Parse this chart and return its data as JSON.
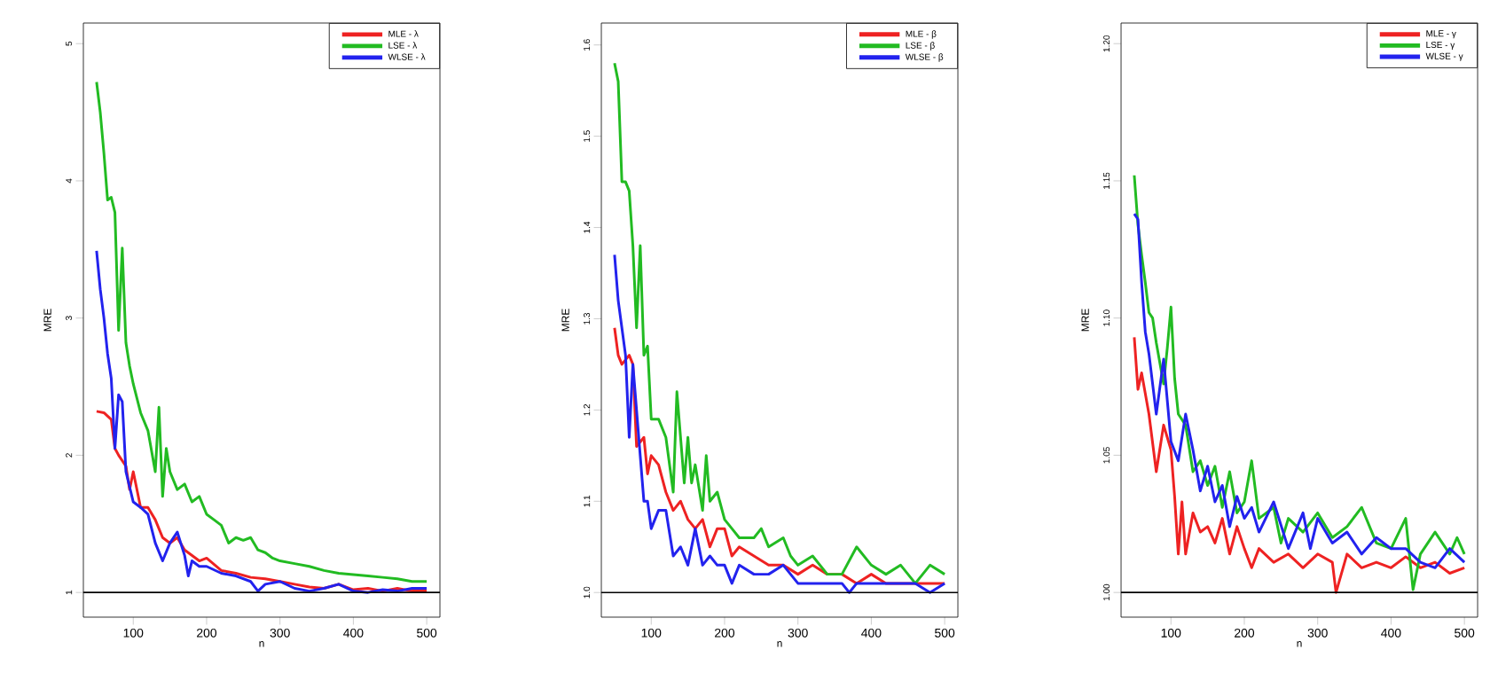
{
  "chart_data": [
    {
      "type": "line",
      "xlabel": "n",
      "ylabel": "MRE",
      "xlim": [
        32,
        518
      ],
      "ylim": [
        0.82,
        5.15
      ],
      "xticks": [
        100,
        200,
        300,
        400,
        500
      ],
      "yticks": [
        1,
        2,
        3,
        4,
        5
      ],
      "legend": "top right",
      "ref_lines": [
        {
          "axis": "y",
          "value": 1,
          "color": "#000000"
        }
      ],
      "series": [
        {
          "name": "MLE - λ",
          "color": "#ee2222",
          "x": [
            50,
            60,
            70,
            75,
            80,
            90,
            95,
            100,
            110,
            120,
            130,
            140,
            150,
            160,
            170,
            180,
            190,
            200,
            220,
            240,
            260,
            280,
            300,
            320,
            340,
            360,
            380,
            400,
            420,
            440,
            460,
            480,
            500
          ],
          "values": [
            2.32,
            2.31,
            2.26,
            2.05,
            2.0,
            1.92,
            1.75,
            1.88,
            1.62,
            1.62,
            1.53,
            1.4,
            1.36,
            1.4,
            1.31,
            1.27,
            1.23,
            1.25,
            1.16,
            1.14,
            1.11,
            1.1,
            1.08,
            1.06,
            1.04,
            1.03,
            1.06,
            1.02,
            1.03,
            1.01,
            1.03,
            1.01,
            1.01
          ]
        },
        {
          "name": "LSE - λ",
          "color": "#22bb22",
          "x": [
            50,
            55,
            60,
            65,
            70,
            75,
            80,
            85,
            90,
            95,
            100,
            110,
            120,
            130,
            135,
            140,
            145,
            150,
            160,
            170,
            180,
            190,
            200,
            210,
            220,
            230,
            240,
            250,
            260,
            270,
            280,
            290,
            300,
            320,
            340,
            360,
            380,
            400,
            420,
            440,
            460,
            480,
            500
          ],
          "values": [
            4.72,
            4.5,
            4.2,
            3.86,
            3.88,
            3.77,
            2.91,
            3.51,
            2.82,
            2.65,
            2.52,
            2.31,
            2.18,
            1.88,
            2.35,
            1.7,
            2.05,
            1.88,
            1.75,
            1.79,
            1.66,
            1.7,
            1.57,
            1.53,
            1.49,
            1.36,
            1.4,
            1.38,
            1.4,
            1.31,
            1.29,
            1.25,
            1.23,
            1.21,
            1.19,
            1.16,
            1.14,
            1.13,
            1.12,
            1.11,
            1.1,
            1.08,
            1.08
          ]
        },
        {
          "name": "WLSE - λ",
          "color": "#2222ee",
          "x": [
            50,
            55,
            60,
            65,
            70,
            75,
            80,
            85,
            90,
            100,
            110,
            120,
            130,
            140,
            150,
            160,
            170,
            175,
            180,
            190,
            200,
            220,
            240,
            260,
            270,
            280,
            300,
            320,
            340,
            360,
            380,
            400,
            420,
            440,
            460,
            480,
            500
          ],
          "values": [
            3.49,
            3.21,
            3.0,
            2.74,
            2.56,
            2.05,
            2.44,
            2.39,
            1.88,
            1.66,
            1.62,
            1.57,
            1.36,
            1.23,
            1.36,
            1.44,
            1.27,
            1.12,
            1.23,
            1.19,
            1.19,
            1.14,
            1.12,
            1.08,
            1.01,
            1.06,
            1.08,
            1.03,
            1.01,
            1.03,
            1.06,
            1.01,
            1.0,
            1.02,
            1.01,
            1.03,
            1.03
          ]
        }
      ]
    },
    {
      "type": "line",
      "xlabel": "n",
      "ylabel": "MRE",
      "xlim": [
        32,
        518
      ],
      "ylim": [
        0.973,
        1.624
      ],
      "xticks": [
        100,
        200,
        300,
        400,
        500
      ],
      "yticks": [
        {
          "value": 1.0,
          "label": "1.0"
        },
        1.1,
        1.2,
        1.3,
        1.4,
        1.5,
        1.6
      ],
      "legend": "top right",
      "ref_lines": [
        {
          "axis": "y",
          "value": 1,
          "color": "#000000"
        }
      ],
      "series": [
        {
          "name": "MLE - β",
          "color": "#ee2222",
          "x": [
            50,
            55,
            60,
            70,
            75,
            80,
            90,
            95,
            100,
            110,
            120,
            130,
            140,
            150,
            160,
            170,
            180,
            190,
            200,
            210,
            220,
            240,
            260,
            280,
            300,
            320,
            340,
            360,
            380,
            400,
            420,
            440,
            460,
            480,
            500
          ],
          "values": [
            1.29,
            1.26,
            1.25,
            1.26,
            1.25,
            1.16,
            1.17,
            1.13,
            1.15,
            1.14,
            1.11,
            1.09,
            1.1,
            1.08,
            1.07,
            1.08,
            1.05,
            1.07,
            1.07,
            1.04,
            1.05,
            1.04,
            1.03,
            1.03,
            1.02,
            1.03,
            1.02,
            1.02,
            1.01,
            1.02,
            1.01,
            null,
            1.01,
            1.01,
            1.01
          ]
        },
        {
          "name": "LSE - β",
          "color": "#22bb22",
          "x": [
            50,
            55,
            60,
            65,
            70,
            75,
            80,
            85,
            90,
            95,
            100,
            110,
            120,
            130,
            135,
            145,
            150,
            155,
            160,
            170,
            175,
            180,
            190,
            200,
            210,
            220,
            240,
            250,
            260,
            280,
            290,
            300,
            320,
            340,
            360,
            380,
            400,
            420,
            440,
            460,
            480,
            500
          ],
          "values": [
            1.58,
            1.56,
            1.45,
            1.45,
            1.44,
            1.38,
            1.29,
            1.38,
            1.26,
            1.27,
            1.19,
            1.19,
            1.17,
            1.11,
            1.22,
            1.12,
            1.17,
            1.12,
            1.14,
            1.09,
            1.15,
            1.1,
            1.11,
            1.08,
            1.07,
            1.06,
            1.06,
            1.07,
            1.05,
            1.06,
            1.04,
            1.03,
            1.04,
            1.02,
            1.02,
            1.05,
            1.03,
            1.02,
            1.03,
            1.01,
            1.03,
            1.02
          ]
        },
        {
          "name": "WLSE - β",
          "color": "#2222ee",
          "x": [
            50,
            55,
            60,
            65,
            70,
            75,
            80,
            90,
            95,
            100,
            110,
            120,
            130,
            140,
            150,
            160,
            170,
            180,
            190,
            200,
            210,
            220,
            240,
            260,
            280,
            300,
            320,
            340,
            360,
            370,
            380,
            400,
            420,
            440,
            460,
            480,
            500
          ],
          "values": [
            1.37,
            1.32,
            1.29,
            1.26,
            1.17,
            1.25,
            1.2,
            1.1,
            1.1,
            1.07,
            1.09,
            1.09,
            1.04,
            1.05,
            1.03,
            1.07,
            1.03,
            1.04,
            1.03,
            1.03,
            1.01,
            1.03,
            1.02,
            1.02,
            1.03,
            1.01,
            1.01,
            1.01,
            1.01,
            1.0,
            1.01,
            1.01,
            1.01,
            1.01,
            1.01,
            1.0,
            1.01
          ]
        }
      ]
    },
    {
      "type": "line",
      "xlabel": "n",
      "ylabel": "MRE",
      "xlim": [
        32,
        518
      ],
      "ylim": [
        0.991,
        1.2075
      ],
      "xticks": [
        100,
        200,
        300,
        400,
        500
      ],
      "yticks": [
        {
          "value": 1.0,
          "label": "1.00"
        },
        1.05,
        {
          "value": 1.1,
          "label": "1.10"
        },
        1.15,
        {
          "value": 1.2,
          "label": "1.20"
        }
      ],
      "legend": "top right",
      "ref_lines": [
        {
          "axis": "y",
          "value": 1,
          "color": "#000000"
        }
      ],
      "series": [
        {
          "name": "MLE - γ",
          "color": "#ee2222",
          "x": [
            50,
            55,
            60,
            70,
            80,
            90,
            100,
            105,
            110,
            115,
            120,
            130,
            140,
            150,
            160,
            170,
            180,
            190,
            200,
            210,
            220,
            240,
            260,
            280,
            300,
            320,
            325,
            340,
            360,
            380,
            400,
            420,
            440,
            460,
            480,
            500
          ],
          "values": [
            1.093,
            1.074,
            1.08,
            1.065,
            1.044,
            1.061,
            1.052,
            1.035,
            1.014,
            1.033,
            1.014,
            1.029,
            1.022,
            1.024,
            1.018,
            1.027,
            1.014,
            1.024,
            1.016,
            1.009,
            1.016,
            1.011,
            1.014,
            1.009,
            1.014,
            1.011,
            1.0,
            1.014,
            1.009,
            1.011,
            1.009,
            1.013,
            1.009,
            1.011,
            1.007,
            1.009
          ]
        },
        {
          "name": "LSE - γ",
          "color": "#22bb22",
          "x": [
            50,
            55,
            60,
            65,
            70,
            75,
            80,
            90,
            95,
            100,
            105,
            110,
            120,
            130,
            140,
            150,
            160,
            170,
            180,
            190,
            200,
            210,
            220,
            240,
            250,
            260,
            280,
            300,
            320,
            340,
            360,
            380,
            400,
            420,
            430,
            440,
            460,
            480,
            490,
            500
          ],
          "values": [
            1.152,
            1.134,
            1.123,
            1.113,
            1.102,
            1.1,
            1.091,
            1.076,
            1.089,
            1.104,
            1.078,
            1.065,
            1.061,
            1.044,
            1.048,
            1.039,
            1.046,
            1.031,
            1.044,
            1.029,
            1.033,
            1.048,
            1.027,
            1.031,
            1.018,
            1.027,
            1.022,
            1.029,
            1.02,
            1.024,
            1.031,
            1.018,
            1.016,
            1.027,
            1.001,
            1.014,
            1.022,
            1.014,
            1.02,
            1.014
          ]
        },
        {
          "name": "WLSE - γ",
          "color": "#2222ee",
          "x": [
            50,
            55,
            60,
            65,
            70,
            80,
            90,
            100,
            110,
            120,
            130,
            140,
            150,
            160,
            170,
            180,
            190,
            200,
            210,
            220,
            240,
            260,
            280,
            290,
            300,
            320,
            340,
            360,
            380,
            400,
            420,
            440,
            460,
            480,
            500
          ],
          "values": [
            1.138,
            1.136,
            1.113,
            1.095,
            1.087,
            1.065,
            1.085,
            1.055,
            1.048,
            1.065,
            1.052,
            1.037,
            1.046,
            1.033,
            1.039,
            1.024,
            1.035,
            1.027,
            1.031,
            1.022,
            1.033,
            1.016,
            1.029,
            1.016,
            1.027,
            1.018,
            1.022,
            1.014,
            1.02,
            1.016,
            1.016,
            1.011,
            1.009,
            1.016,
            1.011
          ]
        }
      ]
    }
  ]
}
